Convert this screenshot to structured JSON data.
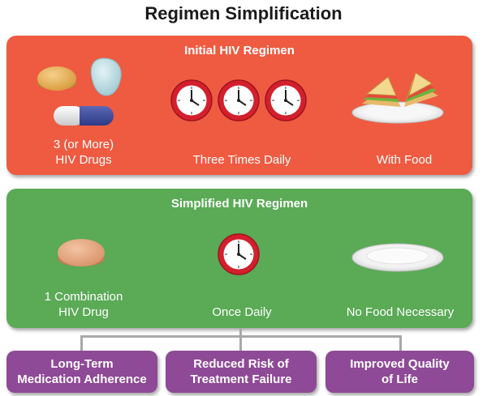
{
  "title": "Regimen Simplification",
  "initial": {
    "heading": "Initial HIV Regimen",
    "items": [
      {
        "label": "3 (or More)\nHIV Drugs",
        "icon": "pills-icon"
      },
      {
        "label": "Three Times Daily",
        "icon": "clock-icon"
      },
      {
        "label": "With Food",
        "icon": "sandwich-plate-icon"
      }
    ]
  },
  "simplified": {
    "heading": "Simplified HIV Regimen",
    "items": [
      {
        "label": "1 Combination\nHIV Drug",
        "icon": "pill-icon"
      },
      {
        "label": "Once Daily",
        "icon": "clock-icon"
      },
      {
        "label": "No Food Necessary",
        "icon": "empty-plate-icon"
      }
    ]
  },
  "outcomes": [
    {
      "label": "Long-Term\nMedication Adherence"
    },
    {
      "label": "Reduced Risk of\nTreatment Failure"
    },
    {
      "label": "Improved Quality\nof Life"
    }
  ],
  "colors": {
    "initial_panel": "#ee5b41",
    "simplified_panel": "#5aaa56",
    "outcome_box": "#8e4a96",
    "clock_ring": "#d41f2c"
  }
}
